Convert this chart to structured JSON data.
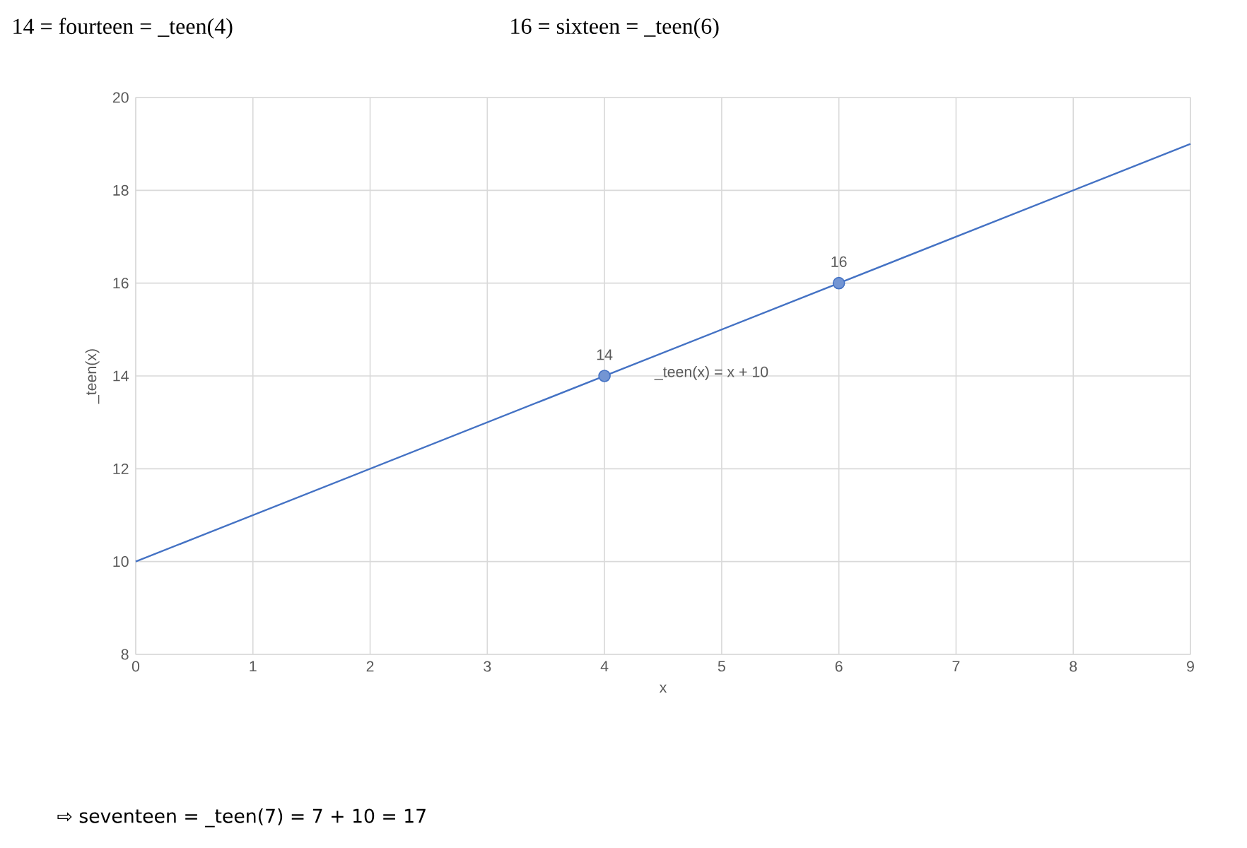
{
  "chart_data": {
    "type": "line",
    "xlabel": "x",
    "ylabel": "_teen(x)",
    "annotations": [
      "14  = fourteen = _teen(4)",
      "16  = sixteen = _teen(6)",
      "⇨  seventeen = _teen(7) = 7 + 10 = 17",
      "_teen(x) = x + 10"
    ],
    "series": [
      {
        "color": "#4472c4",
        "x": [
          0,
          9
        ],
        "values": [
          10,
          19
        ],
        "marker": "none"
      },
      {
        "type": "scatter",
        "color": "#4472c4",
        "x": [
          4,
          6
        ],
        "values": [
          14,
          16
        ],
        "marker": "circle",
        "value_labels": [
          "14",
          "16"
        ]
      }
    ],
    "xlim": [
      0,
      9
    ],
    "ylim": [
      8,
      20
    ],
    "xticks": [
      0,
      1,
      2,
      3,
      4,
      5,
      6,
      7,
      8,
      9
    ],
    "yticks": [
      8,
      10,
      12,
      14,
      16,
      18,
      20
    ],
    "grid": true
  }
}
